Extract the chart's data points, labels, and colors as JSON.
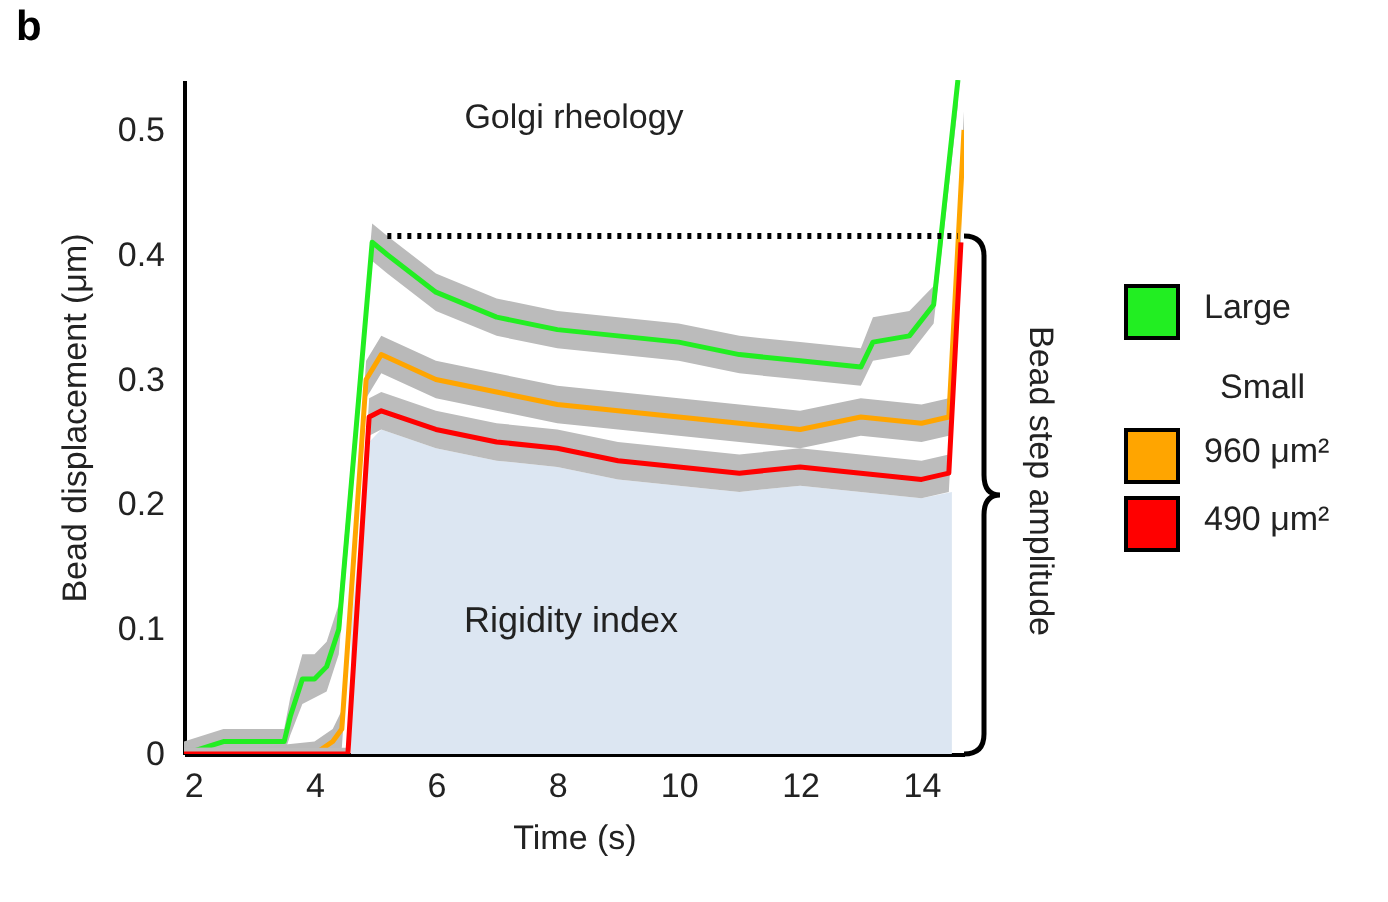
{
  "chart_data": {
    "type": "line",
    "title": "Golgi rheology",
    "xlabel": "Time (s)",
    "ylabel": "Bead displacement (μm)",
    "xlim": [
      1.85,
      14.7
    ],
    "ylim": [
      0,
      0.54
    ],
    "xticks": [
      2,
      4,
      6,
      8,
      10,
      12,
      14
    ],
    "yticks": [
      0,
      0.1,
      0.2,
      0.3,
      0.4,
      0.5
    ],
    "legend": "right",
    "annotations": [
      "b",
      "Rigidity index",
      "Bead step amplitude",
      "Small"
    ],
    "series": [
      {
        "type": "area",
        "color": "#dce6f2",
        "x": [
          4.6,
          4.9,
          5.1,
          6,
          7,
          8,
          9,
          10,
          11,
          12,
          13,
          14,
          14.5
        ],
        "values": [
          0.1,
          0.25,
          0.26,
          0.245,
          0.235,
          0.23,
          0.22,
          0.215,
          0.21,
          0.215,
          0.21,
          0.205,
          0.21
        ]
      },
      {
        "name": "Large",
        "color": "#22ee22",
        "x": [
          1.85,
          2.5,
          3.0,
          3.5,
          3.6,
          3.8,
          4.0,
          4.2,
          4.4,
          4.95,
          5.2,
          6,
          7,
          8,
          9,
          10,
          11,
          12,
          13.0,
          13.2,
          13.8,
          14.2,
          14.6
        ],
        "values": [
          0,
          0.01,
          0.01,
          0.01,
          0.03,
          0.06,
          0.06,
          0.07,
          0.1,
          0.41,
          0.4,
          0.37,
          0.35,
          0.34,
          0.335,
          0.33,
          0.32,
          0.315,
          0.31,
          0.33,
          0.335,
          0.36,
          0.54
        ],
        "lower": [
          0,
          0,
          0,
          0,
          0.015,
          0.04,
          0.045,
          0.05,
          0.08,
          0.395,
          0.385,
          0.355,
          0.335,
          0.325,
          0.32,
          0.315,
          0.305,
          0.3,
          0.295,
          0.315,
          0.32,
          0.345,
          0.52
        ],
        "upper": [
          0.01,
          0.02,
          0.02,
          0.02,
          0.045,
          0.08,
          0.08,
          0.09,
          0.12,
          0.425,
          0.415,
          0.385,
          0.365,
          0.355,
          0.35,
          0.345,
          0.335,
          0.33,
          0.325,
          0.35,
          0.355,
          0.375,
          0.54
        ]
      },
      {
        "name": "960 μm²",
        "color": "#ffa500",
        "x": [
          1.85,
          3.0,
          4.0,
          4.3,
          4.45,
          4.85,
          5.1,
          6,
          7,
          8,
          9,
          10,
          11,
          12,
          13,
          14,
          14.45,
          14.7
        ],
        "values": [
          0,
          0,
          0,
          0.01,
          0.02,
          0.3,
          0.32,
          0.3,
          0.29,
          0.28,
          0.275,
          0.27,
          0.265,
          0.26,
          0.27,
          0.265,
          0.27,
          0.5
        ],
        "lower": [
          0,
          0,
          0,
          0,
          0.005,
          0.285,
          0.305,
          0.285,
          0.275,
          0.265,
          0.26,
          0.255,
          0.25,
          0.245,
          0.255,
          0.25,
          0.255,
          0.485
        ],
        "upper": [
          0.005,
          0.005,
          0.01,
          0.02,
          0.035,
          0.315,
          0.335,
          0.315,
          0.305,
          0.295,
          0.29,
          0.285,
          0.28,
          0.275,
          0.285,
          0.28,
          0.285,
          0.515
        ]
      },
      {
        "name": "490 μm²",
        "color": "#ff0000",
        "x": [
          1.85,
          3.0,
          4.0,
          4.55,
          4.9,
          5.1,
          6,
          7,
          8,
          9,
          10,
          11,
          12,
          13,
          14,
          14.45,
          14.65
        ],
        "values": [
          0,
          0,
          0,
          0,
          0.27,
          0.275,
          0.26,
          0.25,
          0.245,
          0.235,
          0.23,
          0.225,
          0.23,
          0.225,
          0.22,
          0.225,
          0.41
        ],
        "lower": [
          0,
          0,
          0,
          0,
          0.255,
          0.26,
          0.245,
          0.235,
          0.23,
          0.22,
          0.215,
          0.21,
          0.215,
          0.21,
          0.205,
          0.21,
          0.395
        ],
        "upper": [
          0.005,
          0.005,
          0.005,
          0.005,
          0.285,
          0.29,
          0.275,
          0.265,
          0.26,
          0.25,
          0.245,
          0.24,
          0.245,
          0.24,
          0.235,
          0.24,
          0.425
        ]
      },
      {
        "type": "line",
        "line_style": "dotted",
        "color": "#000000",
        "x": [
          5.2,
          14.6
        ],
        "values": [
          0.415,
          0.415
        ]
      }
    ]
  }
}
